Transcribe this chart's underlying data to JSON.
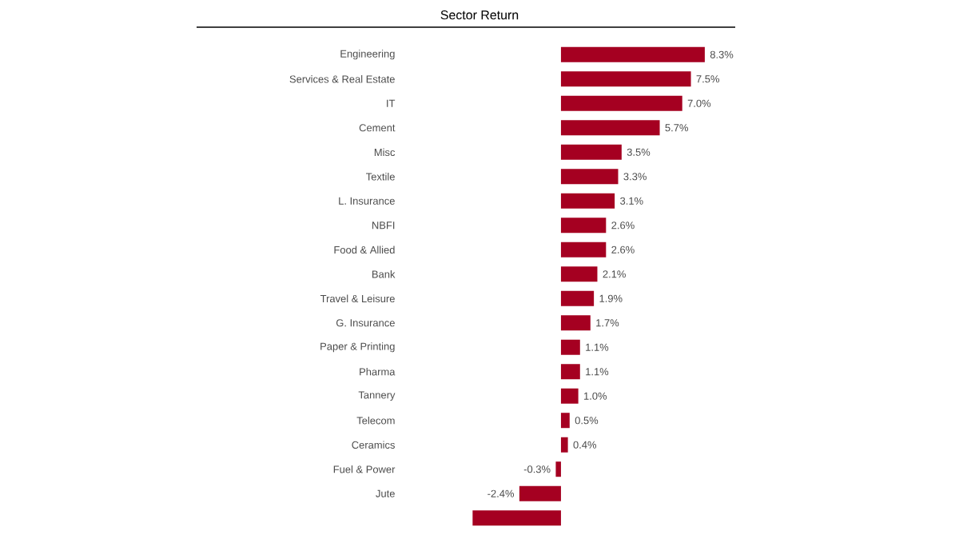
{
  "chart_data": {
    "type": "bar",
    "orientation": "horizontal",
    "title": "Sector Return",
    "categories": [
      "Engineering",
      "Services & Real Estate",
      "IT",
      "Cement",
      "Misc",
      "Textile",
      "L. Insurance",
      "NBFI",
      "Food & Allied",
      "Bank",
      "Travel & Leisure",
      "G. Insurance",
      "Paper & Printing",
      "Pharma",
      "Tannery",
      "Telecom",
      "Ceramics",
      "Fuel & Power",
      "Jute",
      null
    ],
    "values": [
      8.3,
      7.5,
      7.0,
      5.7,
      3.5,
      3.3,
      3.1,
      2.6,
      2.6,
      2.1,
      1.9,
      1.7,
      1.1,
      1.1,
      1.0,
      0.5,
      0.4,
      -0.3,
      -2.4,
      -5.1
    ],
    "value_labels": [
      "8.3%",
      "7.5%",
      "7.0%",
      "5.7%",
      "3.5%",
      "3.3%",
      "3.1%",
      "2.6%",
      "2.6%",
      "2.1%",
      "1.9%",
      "1.7%",
      "1.1%",
      "1.1%",
      "1.0%",
      "0.5%",
      "0.4%",
      "-0.3%",
      "-2.4%",
      null
    ],
    "color": "#a50021"
  }
}
